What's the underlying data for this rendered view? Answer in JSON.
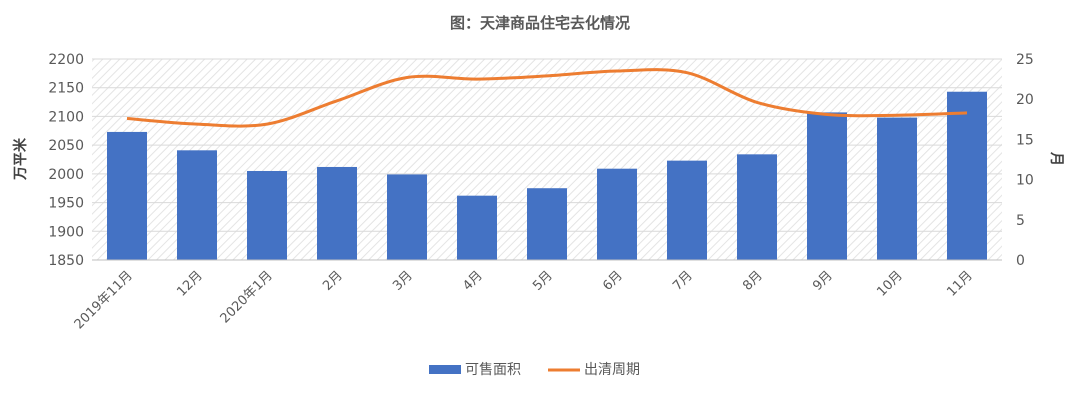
{
  "chart_data": {
    "type": "bar+line",
    "title": "图：天津商品住宅去化情况",
    "categories": [
      "2019年11月",
      "12月",
      "2020年1月",
      "2月",
      "3月",
      "4月",
      "5月",
      "6月",
      "7月",
      "8月",
      "9月",
      "10月",
      "11月"
    ],
    "series": [
      {
        "name": "可售面积",
        "type": "bar",
        "axis": "left",
        "values": [
          2073,
          2041,
          2005,
          2012,
          1999,
          1962,
          1975,
          2009,
          2023,
          2034,
          2107,
          2098,
          2143
        ]
      },
      {
        "name": "出清周期",
        "type": "line",
        "axis": "right",
        "values": [
          17.6,
          16.9,
          16.9,
          19.8,
          22.7,
          22.5,
          22.9,
          23.5,
          23.3,
          19.6,
          18.1,
          18.0,
          18.3
        ]
      }
    ],
    "ylabel": "万平米",
    "y2label": "月",
    "ylim": [
      1850,
      2200
    ],
    "yticks": [
      1850,
      1900,
      1950,
      2000,
      2050,
      2100,
      2150,
      2200
    ],
    "y2lim": [
      0,
      25
    ],
    "y2ticks": [
      0,
      5,
      10,
      15,
      20,
      25
    ],
    "legend": "bottom",
    "grid": true,
    "colors": {
      "bar": "#4472C4",
      "line": "#ED7D31",
      "text": "#595959",
      "grid": "#D9D9D9"
    }
  }
}
